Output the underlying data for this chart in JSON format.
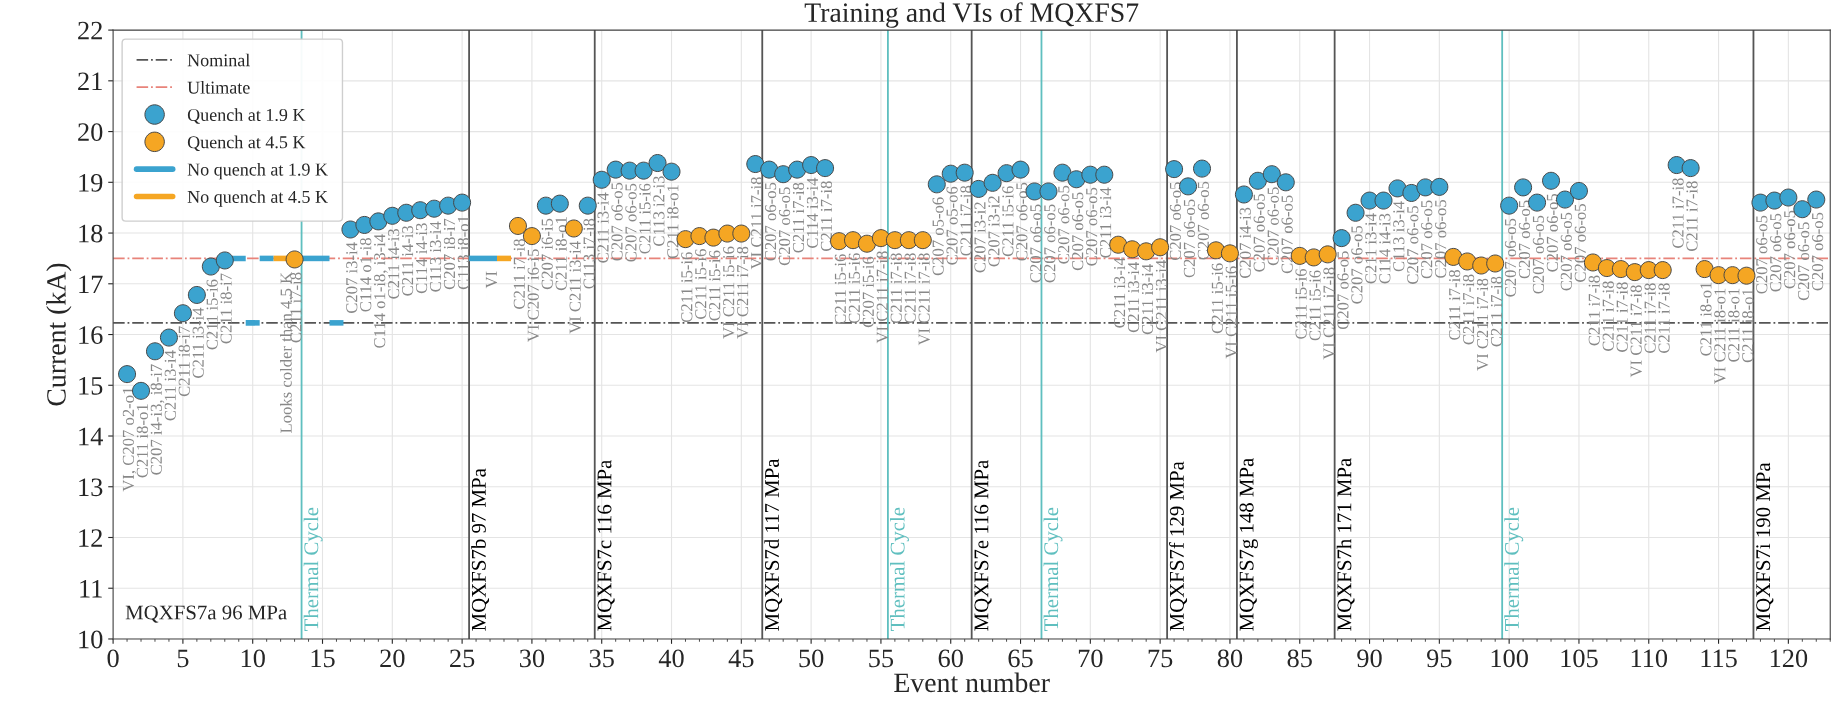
{
  "chart_data": {
    "type": "scatter",
    "title": "Training and VIs of MQXFS7",
    "xlabel": "Event number",
    "ylabel": "Current (kA)",
    "xlim": [
      0,
      123
    ],
    "ylim": [
      10,
      22
    ],
    "xticks": [
      0,
      5,
      10,
      15,
      20,
      25,
      30,
      35,
      40,
      45,
      50,
      55,
      60,
      65,
      70,
      75,
      80,
      85,
      90,
      95,
      100,
      105,
      110,
      115,
      120
    ],
    "yticks": [
      10,
      11,
      12,
      13,
      14,
      15,
      16,
      17,
      18,
      19,
      20,
      21,
      22
    ],
    "grid": true,
    "legend": "top left",
    "series": [
      {
        "name": "Quench at 1.9 K",
        "color": "#3ba3cf",
        "marker": "circle",
        "x": [
          1,
          2,
          3,
          4,
          5,
          6,
          7,
          8,
          17,
          18,
          19,
          20,
          21,
          22,
          23,
          24,
          25,
          31,
          32,
          34,
          35,
          36,
          37,
          38,
          39,
          40,
          46,
          47,
          48,
          49,
          50,
          51,
          59,
          60,
          61,
          62,
          63,
          64,
          65,
          66,
          67,
          68,
          69,
          70,
          71,
          76,
          77,
          78,
          81,
          82,
          83,
          84,
          88,
          89,
          90,
          91,
          92,
          93,
          94,
          95,
          100,
          101,
          102,
          103,
          104,
          105,
          112,
          113,
          118,
          119,
          120,
          121,
          122
        ],
        "values": [
          15.22,
          14.89,
          15.67,
          15.94,
          16.42,
          16.78,
          17.34,
          17.46,
          18.07,
          18.16,
          18.23,
          18.34,
          18.4,
          18.45,
          18.48,
          18.54,
          18.6,
          18.54,
          18.58,
          18.54,
          19.05,
          19.25,
          19.23,
          19.23,
          19.38,
          19.21,
          19.36,
          19.25,
          19.16,
          19.25,
          19.34,
          19.28,
          18.96,
          19.17,
          19.19,
          18.87,
          18.99,
          19.18,
          19.25,
          18.82,
          18.82,
          19.19,
          19.06,
          19.15,
          19.15,
          19.26,
          18.92,
          19.27,
          18.76,
          19.03,
          19.16,
          19.0,
          17.9,
          18.4,
          18.64,
          18.64,
          18.88,
          18.79,
          18.9,
          18.91,
          18.54,
          18.9,
          18.6,
          19.03,
          18.66,
          18.83,
          19.34,
          19.28,
          18.6,
          18.64,
          18.7,
          18.47,
          18.66
        ]
      },
      {
        "name": "Quench at 4.5 K",
        "color": "#f5a623",
        "marker": "circle",
        "x": [
          13,
          29,
          30,
          33,
          41,
          42,
          43,
          44,
          45,
          52,
          53,
          54,
          55,
          56,
          57,
          58,
          72,
          73,
          74,
          75,
          79,
          80,
          85,
          86,
          87,
          96,
          97,
          98,
          99,
          106,
          107,
          108,
          109,
          110,
          111,
          114,
          115,
          116,
          117
        ],
        "values": [
          17.48,
          18.14,
          17.94,
          18.09,
          17.88,
          17.94,
          17.91,
          17.99,
          17.99,
          17.84,
          17.86,
          17.79,
          17.9,
          17.86,
          17.86,
          17.86,
          17.77,
          17.68,
          17.64,
          17.72,
          17.66,
          17.6,
          17.55,
          17.52,
          17.58,
          17.53,
          17.44,
          17.36,
          17.4,
          17.42,
          17.31,
          17.29,
          17.23,
          17.27,
          17.27,
          17.29,
          17.17,
          17.17,
          17.16
        ]
      },
      {
        "name": "No quench at 1.9 K",
        "type": "line",
        "line_style": "solid",
        "color": "#3ba3cf",
        "x": [
          8.5,
          9.5
        ],
        "values": [
          17.5,
          17.5
        ]
      },
      {
        "type": "line",
        "line_style": "solid",
        "color": "#3ba3cf",
        "x": [
          9.5,
          10.5
        ],
        "values": [
          16.23,
          16.23
        ]
      },
      {
        "type": "line",
        "line_style": "solid",
        "color": "#3ba3cf",
        "x": [
          10.5,
          11.5
        ],
        "values": [
          17.5,
          17.5
        ]
      },
      {
        "type": "line",
        "line_style": "solid",
        "color": "#3ba3cf",
        "x": [
          13.5,
          15.5
        ],
        "values": [
          17.5,
          17.5
        ]
      },
      {
        "type": "line",
        "line_style": "solid",
        "color": "#3ba3cf",
        "x": [
          15.5,
          16.5
        ],
        "values": [
          16.23,
          16.23
        ]
      },
      {
        "type": "line",
        "line_style": "solid",
        "color": "#3ba3cf",
        "x": [
          25.5,
          27.5
        ],
        "values": [
          17.5,
          17.5
        ]
      },
      {
        "name": "No quench at 4.5 K",
        "type": "line",
        "line_style": "solid",
        "color": "#f5a623",
        "x": [
          11.5,
          12.5
        ],
        "values": [
          17.5,
          17.5
        ]
      },
      {
        "type": "line",
        "line_style": "solid",
        "color": "#f5a623",
        "x": [
          27.5,
          28.5
        ],
        "values": [
          17.5,
          17.5
        ]
      }
    ],
    "ref_lines": [
      {
        "axis": "y",
        "value": 16.23,
        "label": "Nominal",
        "color": "#555555",
        "line_style": "dashdot"
      },
      {
        "axis": "y",
        "value": 17.5,
        "label": "Ultimate",
        "color": "#e8837a",
        "line_style": "dashdot"
      },
      {
        "axis": "x",
        "value": 13.5,
        "label": "Thermal Cycle",
        "color": "#5fbfbf",
        "line_style": "solid"
      },
      {
        "axis": "x",
        "value": 25.5,
        "label": "MQXFS7b 97 MPa",
        "color": "#555555",
        "line_style": "solid"
      },
      {
        "axis": "x",
        "value": 34.5,
        "label": "MQXFS7c 116 MPa",
        "color": "#555555",
        "line_style": "solid"
      },
      {
        "axis": "x",
        "value": 46.5,
        "label": "MQXFS7d 117 MPa",
        "color": "#555555",
        "line_style": "solid"
      },
      {
        "axis": "x",
        "value": 55.5,
        "label": "Thermal Cycle",
        "color": "#5fbfbf",
        "line_style": "solid"
      },
      {
        "axis": "x",
        "value": 61.5,
        "label": "MQXFS7e 116 MPa",
        "color": "#555555",
        "line_style": "solid"
      },
      {
        "axis": "x",
        "value": 66.5,
        "label": "Thermal Cycle",
        "color": "#5fbfbf",
        "line_style": "solid"
      },
      {
        "axis": "x",
        "value": 75.5,
        "label": "MQXFS7f 129 MPa",
        "color": "#555555",
        "line_style": "solid"
      },
      {
        "axis": "x",
        "value": 80.5,
        "label": "MQXFS7g 148 MPa",
        "color": "#555555",
        "line_style": "solid"
      },
      {
        "axis": "x",
        "value": 87.5,
        "label": "MQXFS7h 171 MPa",
        "color": "#555555",
        "line_style": "solid"
      },
      {
        "axis": "x",
        "value": 99.5,
        "label": "Thermal Cycle",
        "color": "#5fbfbf",
        "line_style": "solid"
      },
      {
        "axis": "x",
        "value": 117.5,
        "label": "MQXFS7i 190 MPa",
        "color": "#555555",
        "line_style": "solid"
      }
    ],
    "annotations": [
      "MQXFS7a 96 MPa",
      {
        "text": "VI, C207 o2-o1",
        "x": 1,
        "y": 15.22
      },
      {
        "text": "C211 i8-o1",
        "x": 2,
        "y": 14.89
      },
      {
        "text": "C207 i4-i3, i8-i7",
        "x": 3,
        "y": 15.67
      },
      {
        "text": "C211 i3-i4",
        "x": 4,
        "y": 15.94
      },
      {
        "text": "C211 i8-i7",
        "x": 5,
        "y": 16.42
      },
      {
        "text": "C211 i3-i4",
        "x": 6,
        "y": 16.78
      },
      {
        "text": "C211 i5-i6",
        "x": 7,
        "y": 17.34
      },
      {
        "text": "C211 i8-i7",
        "x": 8,
        "y": 17.46
      },
      {
        "text": "Looks colder than 4.5 K",
        "x": 12.3,
        "y": 17.48
      },
      {
        "text": "C211 i7-i8",
        "x": 13,
        "y": 17.48
      },
      {
        "text": "C207 i3-i4",
        "x": 17,
        "y": 18.07
      },
      {
        "text": "C114 o1-i8",
        "x": 18,
        "y": 18.16
      },
      {
        "text": "C114 o1-i8, i3-i4",
        "x": 19,
        "y": 18.23
      },
      {
        "text": "C211 i4-i3",
        "x": 20,
        "y": 18.34
      },
      {
        "text": "C211 i4-i3",
        "x": 21,
        "y": 18.4
      },
      {
        "text": "C114 i4-i3",
        "x": 22,
        "y": 18.45
      },
      {
        "text": "C113 i3-i4",
        "x": 23,
        "y": 18.48
      },
      {
        "text": "C207 i8-i7",
        "x": 24,
        "y": 18.54
      },
      {
        "text": "C113 i8-o1",
        "x": 25,
        "y": 18.6
      },
      {
        "text": "VI",
        "x": 27,
        "y": 17.5
      },
      {
        "text": "C211 i7-i8",
        "x": 29,
        "y": 18.14
      },
      {
        "text": "VI C207 i6-i5",
        "x": 30,
        "y": 17.94
      },
      {
        "text": "C207 i6-i5",
        "x": 31,
        "y": 18.54
      },
      {
        "text": "C211 i8-o1",
        "x": 32,
        "y": 18.58
      },
      {
        "text": "VI C211 i3-i4",
        "x": 33,
        "y": 18.09
      },
      {
        "text": "C113 i7-i8",
        "x": 34,
        "y": 18.54
      },
      {
        "text": "C211 i3-i4",
        "x": 35,
        "y": 19.05
      },
      {
        "text": "C207 o6-o5",
        "x": 36,
        "y": 19.25
      },
      {
        "text": "C207 o6-o5",
        "x": 37,
        "y": 19.23
      },
      {
        "text": "C211 i5-i6",
        "x": 38,
        "y": 19.23
      },
      {
        "text": "C113 i2-i3",
        "x": 39,
        "y": 19.38
      },
      {
        "text": "C211 i8-o1",
        "x": 40,
        "y": 19.21
      },
      {
        "text": "C211 i5-i6",
        "x": 41,
        "y": 17.88
      },
      {
        "text": "C211 i5-i6",
        "x": 42,
        "y": 17.94
      },
      {
        "text": "C211 i5-i6",
        "x": 43,
        "y": 17.91
      },
      {
        "text": "VI C211 i5-i6",
        "x": 44,
        "y": 17.99
      },
      {
        "text": "VI C211 i7-i8",
        "x": 45,
        "y": 17.99
      },
      {
        "text": "VI C211 i7-i8",
        "x": 46,
        "y": 19.36
      },
      {
        "text": "C207 o6-o5",
        "x": 47,
        "y": 19.25
      },
      {
        "text": "C207 o6-o5",
        "x": 48,
        "y": 19.16
      },
      {
        "text": "C211 i7-i8",
        "x": 49,
        "y": 19.25
      },
      {
        "text": "C114 i3-i4",
        "x": 50,
        "y": 19.34
      },
      {
        "text": "C211 i7-i8",
        "x": 51,
        "y": 19.28
      },
      {
        "text": "C211 i5-i6",
        "x": 52,
        "y": 17.84
      },
      {
        "text": "C211 i5-i6",
        "x": 53,
        "y": 17.86
      },
      {
        "text": "C207 i5-i6",
        "x": 54,
        "y": 17.79
      },
      {
        "text": "VI C211 i7-i8",
        "x": 55,
        "y": 17.9
      },
      {
        "text": "C211 i7-i8",
        "x": 56,
        "y": 17.86
      },
      {
        "text": "C211 i7-i8",
        "x": 57,
        "y": 17.86
      },
      {
        "text": "VI C211 i7-i8",
        "x": 58,
        "y": 17.86
      },
      {
        "text": "C207 o5-o6",
        "x": 59,
        "y": 18.96
      },
      {
        "text": "C207 o5-o6",
        "x": 60,
        "y": 19.17
      },
      {
        "text": "C211 i7-i8",
        "x": 61,
        "y": 19.19
      },
      {
        "text": "C207 i3-i2",
        "x": 62,
        "y": 18.87
      },
      {
        "text": "C207 i3-i2",
        "x": 63,
        "y": 18.99
      },
      {
        "text": "C211 i5-i6",
        "x": 64,
        "y": 19.18
      },
      {
        "text": "C207 o6-o5",
        "x": 65,
        "y": 19.25
      },
      {
        "text": "C207 o6-o5",
        "x": 66,
        "y": 18.82
      },
      {
        "text": "C207 o6-o5",
        "x": 67,
        "y": 18.82
      },
      {
        "text": "C207 o6-o5",
        "x": 68,
        "y": 19.19
      },
      {
        "text": "C207 o6-o5",
        "x": 69,
        "y": 19.06
      },
      {
        "text": "C207 o6-o5",
        "x": 70,
        "y": 19.15
      },
      {
        "text": "C211 i3-i4",
        "x": 71,
        "y": 19.15
      },
      {
        "text": "C211 i3-i4",
        "x": 72,
        "y": 17.77
      },
      {
        "text": "C211 i3-i4",
        "x": 73,
        "y": 17.68
      },
      {
        "text": "C211 i3-i4",
        "x": 74,
        "y": 17.64
      },
      {
        "text": "VI C211 i3-i4",
        "x": 75,
        "y": 17.72
      },
      {
        "text": "C207 o6-o5",
        "x": 76,
        "y": 19.26
      },
      {
        "text": "C207 o6-o5",
        "x": 77,
        "y": 18.92
      },
      {
        "text": "C207 o6-o5",
        "x": 78,
        "y": 19.27
      },
      {
        "text": "C211 i5-i6",
        "x": 79,
        "y": 17.66
      },
      {
        "text": "VI C211 i5-i6",
        "x": 80,
        "y": 17.6
      },
      {
        "text": "C207 i4-i3",
        "x": 81,
        "y": 18.76
      },
      {
        "text": "C207 o6-o5",
        "x": 82,
        "y": 19.03
      },
      {
        "text": "C207 o6-o5",
        "x": 83,
        "y": 19.16
      },
      {
        "text": "C207 o6-o5",
        "x": 84,
        "y": 19.0
      },
      {
        "text": "C211 i5-i6",
        "x": 85,
        "y": 17.55
      },
      {
        "text": "C211 i5-i6",
        "x": 86,
        "y": 17.52
      },
      {
        "text": "VI C211 i7-i8",
        "x": 87,
        "y": 17.58
      },
      {
        "text": "C207 o6-o5",
        "x": 88,
        "y": 17.9
      },
      {
        "text": "C207 o6-o5",
        "x": 89,
        "y": 18.4
      },
      {
        "text": "C211 i3-i4",
        "x": 90,
        "y": 18.64
      },
      {
        "text": "C114 i4-i3",
        "x": 91,
        "y": 18.64
      },
      {
        "text": "C113 i3-i4",
        "x": 92,
        "y": 18.88
      },
      {
        "text": "C207 o6-o5",
        "x": 93,
        "y": 18.79
      },
      {
        "text": "C207 o6-o5",
        "x": 94,
        "y": 18.9
      },
      {
        "text": "C207 o6-o5",
        "x": 95,
        "y": 18.91
      },
      {
        "text": "C211 i7-i8",
        "x": 96,
        "y": 17.53
      },
      {
        "text": "C211 i7-i8",
        "x": 97,
        "y": 17.44
      },
      {
        "text": "VI C211 i7-i8",
        "x": 98,
        "y": 17.36
      },
      {
        "text": "C211 i7-i8",
        "x": 99,
        "y": 17.4
      },
      {
        "text": "C207 o6-o5",
        "x": 100,
        "y": 18.54
      },
      {
        "text": "C207 o6-o5",
        "x": 101,
        "y": 18.9
      },
      {
        "text": "C207 o6-o5",
        "x": 102,
        "y": 18.6
      },
      {
        "text": "C207 o6-o5",
        "x": 103,
        "y": 19.03
      },
      {
        "text": "C207 o6-o5",
        "x": 104,
        "y": 18.66
      },
      {
        "text": "C207 o6-o5",
        "x": 105,
        "y": 18.83
      },
      {
        "text": "C211 i7-i8",
        "x": 106,
        "y": 17.42
      },
      {
        "text": "C211 i7-i8",
        "x": 107,
        "y": 17.31
      },
      {
        "text": "C211 i7-i8",
        "x": 108,
        "y": 17.29
      },
      {
        "text": "VI C211 i7-i8",
        "x": 109,
        "y": 17.23
      },
      {
        "text": "C211 i7-i8",
        "x": 110,
        "y": 17.27
      },
      {
        "text": "C211 i7-i8",
        "x": 111,
        "y": 17.27
      },
      {
        "text": "C211 i7-i8",
        "x": 112,
        "y": 19.34
      },
      {
        "text": "C211 i7-i8",
        "x": 113,
        "y": 19.28
      },
      {
        "text": "C211 i8-o1",
        "x": 114,
        "y": 17.29
      },
      {
        "text": "VI C211 i8-o1",
        "x": 115,
        "y": 17.17
      },
      {
        "text": "C211 i8-o1",
        "x": 116,
        "y": 17.17
      },
      {
        "text": "C211 i8-o1",
        "x": 117,
        "y": 17.16
      },
      {
        "text": "C207 o6-o5",
        "x": 118,
        "y": 18.6
      },
      {
        "text": "C207 o6-o5",
        "x": 119,
        "y": 18.64
      },
      {
        "text": "C207 o6-o5",
        "x": 120,
        "y": 18.7
      },
      {
        "text": "C207 o6-o5",
        "x": 121,
        "y": 18.47
      },
      {
        "text": "C207 o6-o5",
        "x": 122,
        "y": 18.66
      }
    ]
  }
}
